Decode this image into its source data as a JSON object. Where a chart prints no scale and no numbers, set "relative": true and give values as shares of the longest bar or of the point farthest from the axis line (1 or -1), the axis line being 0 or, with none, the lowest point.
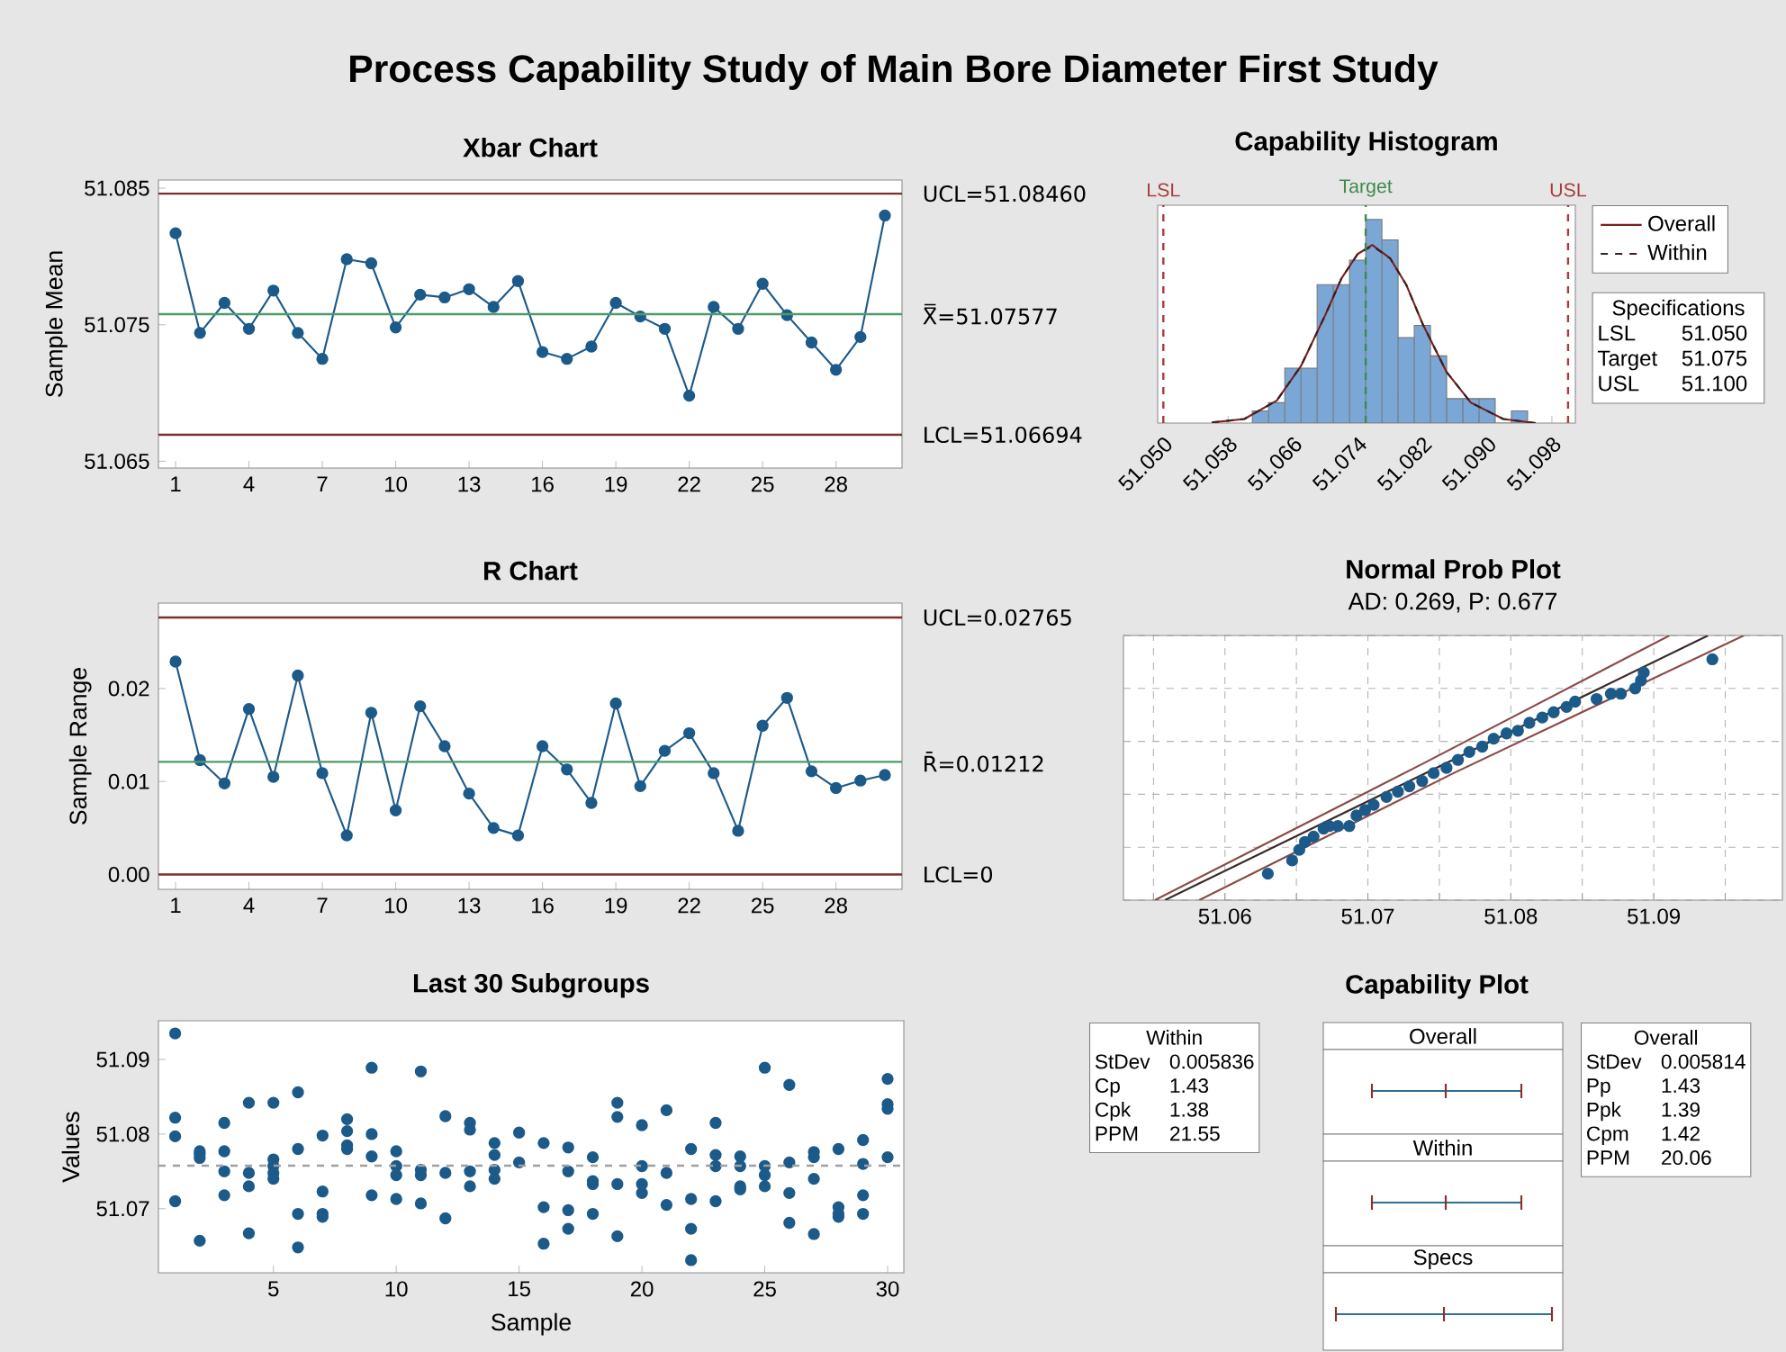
{
  "chart_data": [
    {
      "type": "line",
      "title": "Xbar Chart",
      "ylabel": "Sample Mean",
      "annotations": [
        "Process Capability Study of Main Bore Diameter First Study"
      ],
      "color": "#1c5a8a",
      "marker": "circle",
      "x": [
        1,
        2,
        3,
        4,
        5,
        6,
        7,
        8,
        9,
        10,
        11,
        12,
        13,
        14,
        15,
        16,
        17,
        18,
        19,
        20,
        21,
        22,
        23,
        24,
        25,
        26,
        27,
        28,
        29,
        30
      ],
      "values": [
        51.0817,
        51.0744,
        51.0766,
        51.0747,
        51.0775,
        51.0744,
        51.0725,
        51.0798,
        51.0795,
        51.0748,
        51.0772,
        51.077,
        51.0776,
        51.0763,
        51.0782,
        51.073,
        51.0725,
        51.0734,
        51.0766,
        51.0756,
        51.0747,
        51.0698,
        51.0763,
        51.0747,
        51.078,
        51.0757,
        51.0737,
        51.0717,
        51.0741,
        51.083
      ],
      "xlim": [
        0.3,
        30.7
      ],
      "xticks": [
        1,
        4,
        7,
        10,
        13,
        16,
        19,
        22,
        25,
        28
      ],
      "ylim": [
        51.0645,
        51.0856
      ],
      "yticks": [
        51.065,
        51.075,
        51.085
      ],
      "ref_lines": [
        {
          "axis": "y",
          "value": 51.0846,
          "label": "UCL=51.08460",
          "color": "#7b2e2e"
        },
        {
          "axis": "y",
          "value": 51.07577,
          "label": "X̿=51.07577",
          "color": "#4f9a6a"
        },
        {
          "axis": "y",
          "value": 51.06694,
          "label": "LCL=51.06694",
          "color": "#7b2e2e"
        }
      ]
    },
    {
      "type": "histogram",
      "title": "Capability Histogram",
      "relative": true,
      "color": "#7ba7d7",
      "bins": [
        51.061,
        51.063,
        51.065,
        51.067,
        51.069,
        51.071,
        51.073,
        51.075,
        51.077,
        51.079,
        51.081,
        51.083,
        51.085,
        51.087,
        51.089,
        51.091,
        51.093,
        51.095
      ],
      "values": [
        0.06,
        0.1,
        0.27,
        0.27,
        0.68,
        0.68,
        0.8,
        1,
        0.9,
        0.42,
        0.48,
        0.33,
        0.12,
        0.12,
        0.12,
        0,
        0.06
      ],
      "xlim": [
        51.0493,
        51.1009
      ],
      "xticks": [
        {
          "value": 51.05,
          "label": "51.050"
        },
        {
          "value": 51.058,
          "label": "51.058"
        },
        {
          "value": 51.066,
          "label": "51.066"
        },
        {
          "value": 51.074,
          "label": "51.074"
        },
        {
          "value": 51.082,
          "label": "51.082"
        },
        {
          "value": 51.09,
          "label": "51.090"
        },
        {
          "value": 51.098,
          "label": "51.098"
        }
      ],
      "series": [
        {
          "name": "Overall",
          "type": "line",
          "color": "#7a1f1f",
          "x": [
            51.056,
            51.06,
            51.064,
            51.067,
            51.07,
            51.072,
            51.074,
            51.0758,
            51.078,
            51.08,
            51.082,
            51.085,
            51.088,
            51.092,
            51.096
          ],
          "values": [
            0.003,
            0.02,
            0.11,
            0.28,
            0.53,
            0.71,
            0.83,
            0.875,
            0.81,
            0.68,
            0.49,
            0.25,
            0.1,
            0.02,
            0
          ]
        },
        {
          "name": "Within",
          "type": "line",
          "line_style": "dashed",
          "color": "#3c2020",
          "x": [
            51.056,
            51.06,
            51.064,
            51.067,
            51.07,
            51.072,
            51.074,
            51.0758,
            51.078,
            51.08,
            51.082,
            51.085,
            51.088,
            51.092,
            51.096
          ],
          "values": [
            0.003,
            0.02,
            0.11,
            0.28,
            0.53,
            0.71,
            0.83,
            0.87,
            0.81,
            0.68,
            0.49,
            0.25,
            0.1,
            0.02,
            0
          ]
        }
      ],
      "ref_lines": [
        {
          "axis": "x",
          "value": 51.05,
          "label": "LSL",
          "color": "#a83c3c",
          "line_style": "dashed"
        },
        {
          "axis": "x",
          "value": 51.075,
          "label": "Target",
          "color": "#3e8a4e",
          "line_style": "dashed"
        },
        {
          "axis": "x",
          "value": 51.1,
          "label": "USL",
          "color": "#a83c3c",
          "line_style": "dashed"
        }
      ],
      "legend": "right",
      "annotations": [
        "Specifications",
        "LSL",
        "51.050",
        "Target",
        "51.075",
        "USL",
        "51.100"
      ]
    },
    {
      "type": "line",
      "title": "R Chart",
      "ylabel": "Sample Range",
      "color": "#1c5a8a",
      "marker": "circle",
      "x": [
        1,
        2,
        3,
        4,
        5,
        6,
        7,
        8,
        9,
        10,
        11,
        12,
        13,
        14,
        15,
        16,
        17,
        18,
        19,
        20,
        21,
        22,
        23,
        24,
        25,
        26,
        27,
        28,
        29,
        30
      ],
      "values": [
        0.0229,
        0.0123,
        0.0098,
        0.0178,
        0.0105,
        0.0214,
        0.0109,
        0.0042,
        0.0174,
        0.0069,
        0.0181,
        0.0138,
        0.0087,
        0.005,
        0.0042,
        0.0138,
        0.0113,
        0.0077,
        0.0184,
        0.0095,
        0.0133,
        0.0152,
        0.0109,
        0.0047,
        0.016,
        0.019,
        0.0111,
        0.0093,
        0.0101,
        0.0107
      ],
      "xlim": [
        0.3,
        30.7
      ],
      "xticks": [
        1,
        4,
        7,
        10,
        13,
        16,
        19,
        22,
        25,
        28
      ],
      "ylim": [
        -0.0016,
        0.0292
      ],
      "yticks": [
        {
          "value": 0,
          "label": "0.00"
        },
        {
          "value": 0.01,
          "label": "0.01"
        },
        {
          "value": 0.02,
          "label": "0.02"
        }
      ],
      "ref_lines": [
        {
          "axis": "y",
          "value": 0.02765,
          "label": "UCL=0.02765",
          "color": "#7b2e2e"
        },
        {
          "axis": "y",
          "value": 0.01212,
          "label": "R̄=0.01212",
          "color": "#4f9a6a"
        },
        {
          "axis": "y",
          "value": 0,
          "label": "LCL=0",
          "color": "#7b2e2e"
        }
      ]
    },
    {
      "type": "scatter",
      "title": "Normal Prob Plot",
      "subtitle": "AD: 0.269, P: 0.677",
      "relative": true,
      "grid": true,
      "marker": "circle",
      "xlim": [
        51.0529,
        51.099
      ],
      "xticks": [
        {
          "value": 51.055,
          "label": null
        },
        51.06,
        {
          "value": 51.065,
          "label": null
        },
        51.07,
        {
          "value": 51.075,
          "label": null
        },
        51.08,
        {
          "value": 51.085,
          "label": null
        },
        51.09,
        {
          "value": 51.095,
          "label": null
        }
      ],
      "series": [
        {
          "type": "line",
          "marker": "none",
          "color": "#8b4a4a",
          "x": [
            51.0551,
            51.074,
            51.0911
          ],
          "values": [
            0,
            0.52,
            1
          ]
        },
        {
          "type": "line",
          "marker": "none",
          "color": "#3a2a2a",
          "x": [
            51.0558,
            51.0938
          ],
          "values": [
            0,
            1
          ]
        },
        {
          "type": "line",
          "marker": "none",
          "color": "#8b4a4a",
          "x": [
            51.0582,
            51.076,
            51.0963
          ],
          "values": [
            0,
            0.48,
            1
          ]
        },
        {
          "type": "scatter",
          "color": "#1c5a8a",
          "x": [
            51.063,
            51.0647,
            51.0652,
            51.0656,
            51.0662,
            51.0669,
            51.0673,
            51.0679,
            51.0687,
            51.0692,
            51.0698,
            51.0704,
            51.0713,
            51.0721,
            51.0729,
            51.0738,
            51.0746,
            51.0755,
            51.0763,
            51.0771,
            51.078,
            51.0788,
            51.0797,
            51.0805,
            51.0813,
            51.0822,
            51.083,
            51.0839,
            51.0845,
            51.086,
            51.087,
            51.0877,
            51.0887,
            51.0891,
            51.0893,
            51.0941
          ],
          "values": [
            0.1,
            0.15,
            0.19,
            0.22,
            0.24,
            0.27,
            0.28,
            0.28,
            0.28,
            0.32,
            0.34,
            0.36,
            0.39,
            0.41,
            0.43,
            0.45,
            0.48,
            0.5,
            0.53,
            0.56,
            0.58,
            0.61,
            0.63,
            0.64,
            0.67,
            0.69,
            0.71,
            0.73,
            0.75,
            0.76,
            0.78,
            0.78,
            0.8,
            0.83,
            0.86,
            0.91
          ]
        }
      ]
    },
    {
      "type": "scatter",
      "title": "Last 30 Subgroups",
      "xlabel": "Sample",
      "ylabel": "Values",
      "color": "#1c5a8a",
      "marker": "circle",
      "x": [
        1,
        1,
        1,
        1,
        2,
        2,
        2,
        2,
        3,
        3,
        3,
        3,
        4,
        4,
        4,
        4,
        5,
        5,
        5,
        5,
        5,
        6,
        6,
        6,
        6,
        7,
        7,
        7,
        7,
        8,
        8,
        8,
        8,
        9,
        9,
        9,
        9,
        10,
        10,
        10,
        10,
        11,
        11,
        11,
        11,
        12,
        12,
        12,
        13,
        13,
        13,
        13,
        14,
        14,
        14,
        14,
        15,
        15,
        16,
        16,
        16,
        17,
        17,
        17,
        17,
        18,
        18,
        18,
        18,
        19,
        19,
        19,
        19,
        20,
        20,
        20,
        20,
        21,
        21,
        21,
        22,
        22,
        22,
        22,
        23,
        23,
        23,
        23,
        24,
        24,
        24,
        24,
        25,
        25,
        25,
        25,
        26,
        26,
        26,
        26,
        27,
        27,
        27,
        27,
        28,
        28,
        28,
        28,
        29,
        29,
        29,
        29,
        30,
        30,
        30,
        30
      ],
      "values": [
        51.0935,
        51.0822,
        51.0797,
        51.071,
        51.0657,
        51.0777,
        51.0773,
        51.0768,
        51.0815,
        51.0777,
        51.075,
        51.0718,
        51.0842,
        51.0748,
        51.073,
        51.0667,
        51.0842,
        51.0766,
        51.0757,
        51.0748,
        51.074,
        51.0856,
        51.078,
        51.0693,
        51.0648,
        51.0798,
        51.0723,
        51.0693,
        51.0689,
        51.082,
        51.0804,
        51.0785,
        51.078,
        51.0889,
        51.08,
        51.077,
        51.0718,
        51.0777,
        51.0757,
        51.0745,
        51.0713,
        51.0884,
        51.0752,
        51.0745,
        51.0707,
        51.0824,
        51.0748,
        51.0687,
        51.0815,
        51.0806,
        51.075,
        51.073,
        51.0788,
        51.0772,
        51.0752,
        51.074,
        51.0802,
        51.0762,
        51.0788,
        51.0702,
        51.0653,
        51.0782,
        51.075,
        51.0698,
        51.0673,
        51.0769,
        51.0737,
        51.0733,
        51.0693,
        51.0842,
        51.0823,
        51.0733,
        51.0663,
        51.0812,
        51.0757,
        51.0733,
        51.0721,
        51.0832,
        51.0748,
        51.0705,
        51.078,
        51.0713,
        51.0673,
        51.0631,
        51.0815,
        51.0772,
        51.0757,
        51.071,
        51.077,
        51.0757,
        51.073,
        51.0726,
        51.0889,
        51.0757,
        51.0745,
        51.073,
        51.0866,
        51.0762,
        51.0721,
        51.0681,
        51.0776,
        51.0769,
        51.074,
        51.0666,
        51.078,
        51.0702,
        51.0693,
        51.0689,
        51.0792,
        51.076,
        51.0718,
        51.0693,
        51.0874,
        51.084,
        51.0834,
        51.0769
      ],
      "xlim": [
        0.32,
        30.66
      ],
      "xticks": [
        5,
        10,
        15,
        20,
        25,
        30
      ],
      "ylim": [
        51.0614,
        51.0952
      ],
      "yticks": [
        51.07,
        51.08,
        51.09
      ],
      "ref_lines": [
        {
          "axis": "y",
          "value": 51.07577,
          "color": "#a0a0a0",
          "line_style": "dashed"
        }
      ]
    },
    {
      "type": "other",
      "title": "Capability Plot",
      "annotations": [
        "Within",
        "StDev",
        "0.005836",
        "Cp",
        "1.43",
        "Cpk",
        "1.38",
        "PPM",
        "21.55",
        "Overall",
        "StDev",
        "0.005814",
        "Pp",
        "1.43",
        "Ppk",
        "1.39",
        "Cpm",
        "1.42",
        "PPM",
        "20.06",
        "Overall",
        "Within",
        "Specs"
      ]
    }
  ]
}
